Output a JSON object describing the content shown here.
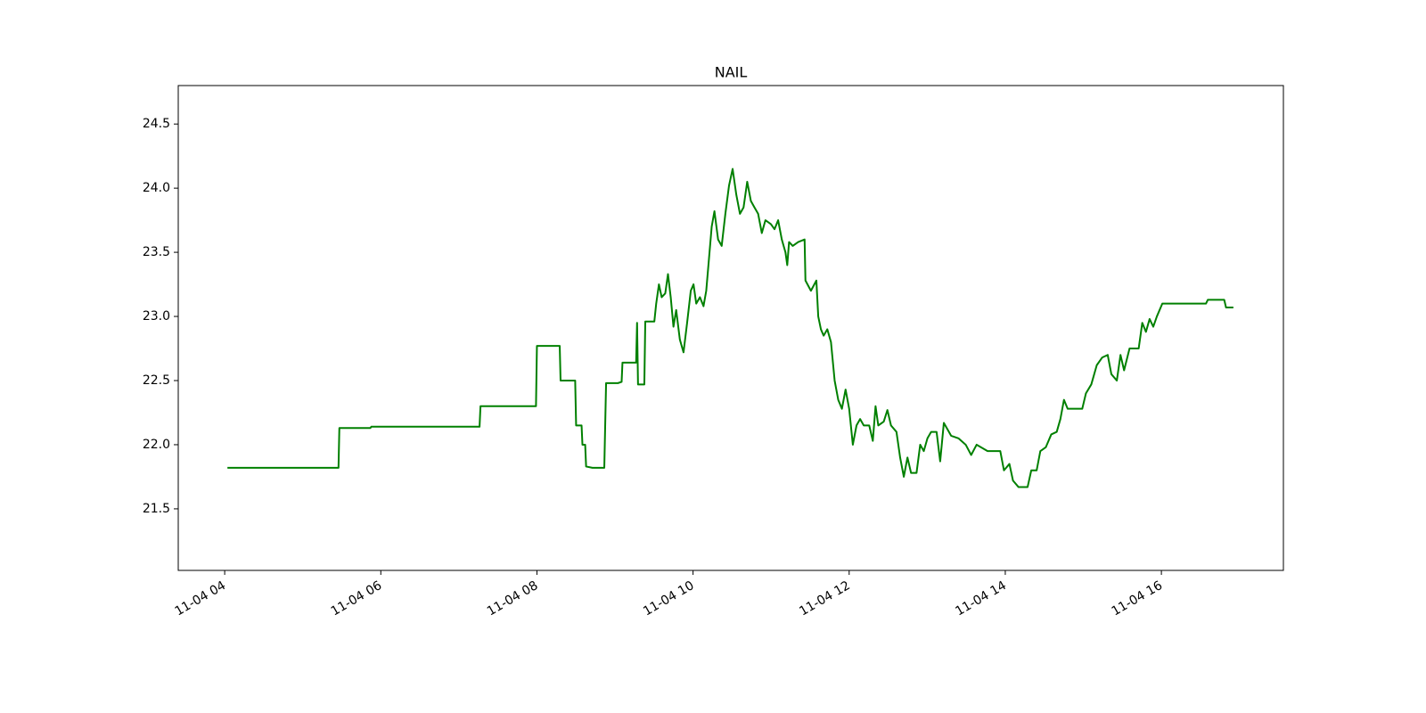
{
  "chart_data": {
    "type": "line",
    "title": "NAIL",
    "color": "#008000",
    "x": [
      4.035,
      5.458,
      5.469,
      5.866,
      5.878,
      7.265,
      7.277,
      7.988,
      8.0,
      8.292,
      8.303,
      8.49,
      8.502,
      8.572,
      8.583,
      8.618,
      8.63,
      8.711,
      8.863,
      8.886,
      9.038,
      9.085,
      9.096,
      9.271,
      9.283,
      9.295,
      9.376,
      9.388,
      9.504,
      9.528,
      9.563,
      9.598,
      9.644,
      9.679,
      9.714,
      9.749,
      9.784,
      9.831,
      9.878,
      9.924,
      9.971,
      10.006,
      10.041,
      10.088,
      10.134,
      10.169,
      10.204,
      10.239,
      10.274,
      10.321,
      10.367,
      10.414,
      10.461,
      10.507,
      10.554,
      10.601,
      10.647,
      10.694,
      10.741,
      10.787,
      10.834,
      10.881,
      10.927,
      10.997,
      11.044,
      11.09,
      11.137,
      11.184,
      11.207,
      11.23,
      11.277,
      11.347,
      11.429,
      11.44,
      11.51,
      11.58,
      11.604,
      11.638,
      11.673,
      11.72,
      11.767,
      11.814,
      11.86,
      11.907,
      11.954,
      12.0,
      12.047,
      12.094,
      12.14,
      12.187,
      12.257,
      12.303,
      12.338,
      12.373,
      12.443,
      12.49,
      12.536,
      12.606,
      12.653,
      12.7,
      12.747,
      12.793,
      12.863,
      12.91,
      12.956,
      13.003,
      13.05,
      13.12,
      13.166,
      13.213,
      13.306,
      13.4,
      13.493,
      13.563,
      13.633,
      13.773,
      13.936,
      13.983,
      14.053,
      14.099,
      14.169,
      14.286,
      14.333,
      14.402,
      14.449,
      14.519,
      14.589,
      14.659,
      14.706,
      14.752,
      14.799,
      14.986,
      15.033,
      15.102,
      15.172,
      15.242,
      15.312,
      15.359,
      15.429,
      15.476,
      15.522,
      15.592,
      15.709,
      15.755,
      15.802,
      15.849,
      15.896,
      15.942,
      16.012,
      16.571,
      16.595,
      16.805,
      16.828,
      16.922
    ],
    "values": [
      21.82,
      21.82,
      22.13,
      22.13,
      22.14,
      22.14,
      22.3,
      22.3,
      22.77,
      22.77,
      22.5,
      22.5,
      22.15,
      22.15,
      22.0,
      22.0,
      21.83,
      21.82,
      21.82,
      22.48,
      22.48,
      22.49,
      22.64,
      22.64,
      22.95,
      22.47,
      22.47,
      22.96,
      22.96,
      23.1,
      23.25,
      23.15,
      23.18,
      23.33,
      23.15,
      22.92,
      23.05,
      22.82,
      22.72,
      22.95,
      23.2,
      23.25,
      23.1,
      23.15,
      23.08,
      23.2,
      23.45,
      23.7,
      23.82,
      23.6,
      23.55,
      23.8,
      24.02,
      24.15,
      23.95,
      23.8,
      23.85,
      24.05,
      23.9,
      23.85,
      23.8,
      23.65,
      23.75,
      23.72,
      23.68,
      23.75,
      23.6,
      23.5,
      23.4,
      23.58,
      23.55,
      23.58,
      23.6,
      23.28,
      23.2,
      23.28,
      23.0,
      22.9,
      22.85,
      22.9,
      22.8,
      22.5,
      22.35,
      22.28,
      22.43,
      22.28,
      22.0,
      22.15,
      22.2,
      22.15,
      22.15,
      22.03,
      22.3,
      22.15,
      22.18,
      22.27,
      22.15,
      22.1,
      21.9,
      21.75,
      21.9,
      21.78,
      21.78,
      22.0,
      21.95,
      22.05,
      22.1,
      22.1,
      21.87,
      22.17,
      22.07,
      22.05,
      22.0,
      21.92,
      22.0,
      21.95,
      21.95,
      21.8,
      21.85,
      21.72,
      21.67,
      21.67,
      21.8,
      21.8,
      21.95,
      21.98,
      22.08,
      22.1,
      22.2,
      22.35,
      22.28,
      22.28,
      22.4,
      22.47,
      22.62,
      22.68,
      22.7,
      22.55,
      22.5,
      22.7,
      22.58,
      22.75,
      22.75,
      22.95,
      22.88,
      22.98,
      22.92,
      23.0,
      23.1,
      23.1,
      23.13,
      23.13,
      23.07,
      23.07
    ],
    "xlim": [
      3.405,
      17.563
    ],
    "xticks": [
      {
        "value": 4,
        "label": "11-04 04"
      },
      {
        "value": 6,
        "label": "11-04 06"
      },
      {
        "value": 8,
        "label": "11-04 08"
      },
      {
        "value": 10,
        "label": "11-04 10"
      },
      {
        "value": 12,
        "label": "11-04 12"
      },
      {
        "value": 14,
        "label": "11-04 14"
      },
      {
        "value": 16,
        "label": "11-04 16"
      }
    ],
    "ylim": [
      21.02,
      24.8
    ],
    "yticks": [
      21.5,
      {
        "value": 22,
        "label": "22.0"
      },
      22.5,
      {
        "value": 23,
        "label": "23.0"
      },
      23.5,
      {
        "value": 24,
        "label": "24.0"
      },
      24.5
    ]
  }
}
